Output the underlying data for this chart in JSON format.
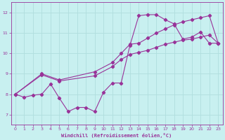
{
  "bg_color": "#c8f0f0",
  "line_color": "#993399",
  "grid_color": "#b0dede",
  "xlabel": "Windchill (Refroidissement éolien,°C)",
  "xlim": [
    -0.5,
    23.5
  ],
  "ylim": [
    6.5,
    12.5
  ],
  "yticks": [
    7,
    8,
    9,
    10,
    11,
    12
  ],
  "xticks": [
    0,
    1,
    2,
    3,
    4,
    5,
    6,
    7,
    8,
    9,
    10,
    11,
    12,
    13,
    14,
    15,
    16,
    17,
    18,
    19,
    20,
    21,
    22,
    23
  ],
  "line1_x": [
    0,
    1,
    2,
    3,
    4,
    5,
    6,
    7,
    8,
    9,
    10,
    11,
    12,
    13,
    14,
    15,
    16,
    17,
    18,
    19,
    20,
    21,
    22,
    23
  ],
  "line1_y": [
    8.0,
    7.85,
    7.95,
    8.0,
    8.5,
    7.8,
    7.15,
    7.35,
    7.35,
    7.15,
    8.1,
    8.55,
    8.55,
    10.4,
    11.85,
    11.9,
    11.9,
    11.65,
    11.45,
    10.7,
    10.8,
    11.05,
    10.5,
    10.5
  ],
  "line2_x": [
    0,
    3,
    5,
    9,
    11,
    12,
    13,
    14,
    15,
    16,
    17,
    18,
    19,
    20,
    21,
    22,
    23
  ],
  "line2_y": [
    8.0,
    9.0,
    8.7,
    9.1,
    9.55,
    10.0,
    10.45,
    10.5,
    10.75,
    11.0,
    11.2,
    11.4,
    11.55,
    11.65,
    11.75,
    11.85,
    10.5
  ],
  "line3_x": [
    0,
    3,
    5,
    9,
    11,
    12,
    13,
    14,
    15,
    16,
    17,
    18,
    19,
    20,
    21,
    22,
    23
  ],
  "line3_y": [
    8.0,
    8.95,
    8.65,
    8.9,
    9.35,
    9.7,
    9.95,
    10.05,
    10.15,
    10.3,
    10.45,
    10.55,
    10.65,
    10.7,
    10.8,
    10.9,
    10.5
  ]
}
